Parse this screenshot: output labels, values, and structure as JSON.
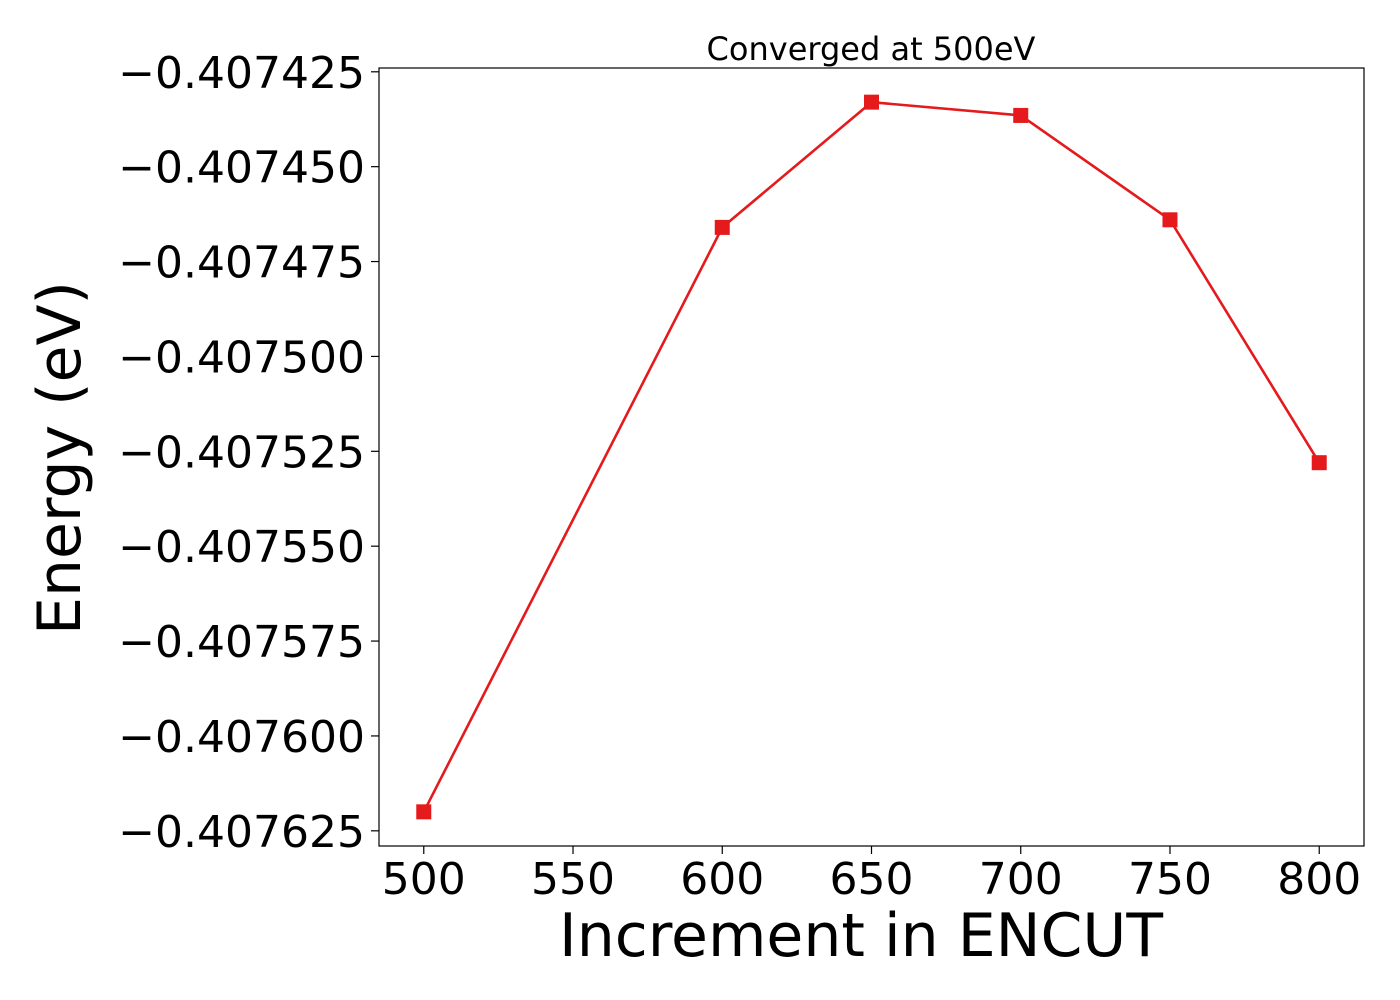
{
  "chart_data": {
    "type": "line",
    "title": "Converged at 500eV",
    "xlabel": "Increment in ENCUT",
    "ylabel": "Energy (eV)",
    "x": [
      500,
      600,
      650,
      700,
      750,
      800
    ],
    "series": [
      {
        "values": [
          -0.40762,
          -0.407466,
          -0.407433,
          -0.4074365,
          -0.407464,
          -0.407528
        ],
        "color": "#e41a1c",
        "marker": "square"
      }
    ],
    "xticks": [
      "500",
      "550",
      "600",
      "650",
      "700",
      "750",
      "800"
    ],
    "yticks": [
      "−0.407425",
      "−0.407450",
      "−0.407475",
      "−0.407500",
      "−0.407525",
      "−0.407550",
      "−0.407575",
      "−0.407600",
      "−0.407625"
    ],
    "xlim": [
      485,
      815
    ],
    "ylim": [
      -0.407629,
      -0.407424
    ],
    "grid": false,
    "legend": "none"
  }
}
